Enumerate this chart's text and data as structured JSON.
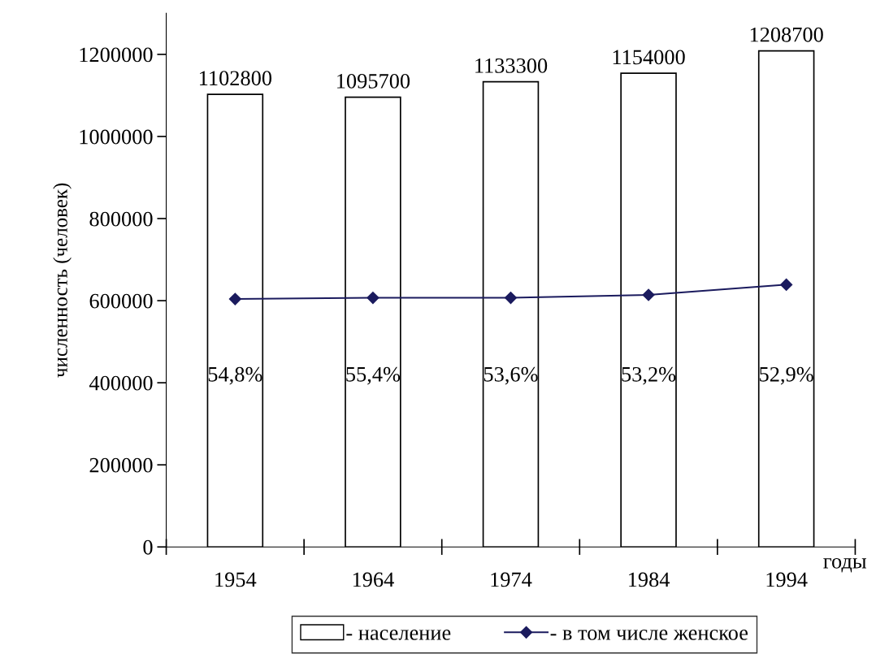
{
  "chart_data": {
    "type": "bar",
    "categories": [
      "1954",
      "1964",
      "1974",
      "1984",
      "1994"
    ],
    "ylabel": "численность (человек)",
    "xlabel": "годы",
    "ylim": [
      0,
      1300000
    ],
    "yticks": [
      0,
      200000,
      400000,
      600000,
      800000,
      1000000,
      1200000
    ],
    "grid": false,
    "legend": "bottom",
    "series": [
      {
        "name": "- население",
        "color": "#ffffff",
        "values": [
          1102800,
          1095700,
          1133300,
          1154000,
          1208700
        ],
        "value_labels": [
          "1102800",
          "1095700",
          "1133300",
          "1154000",
          "1208700"
        ]
      },
      {
        "name": "- в том числе женское",
        "type": "line",
        "color": "#1b1b5e",
        "marker": "diamond",
        "line_style": "solid",
        "values": [
          604000,
          607000,
          607000,
          614000,
          639000
        ]
      }
    ],
    "annotations": [
      "54,8%",
      "55,4%",
      "53,6%",
      "53,2%",
      "52,9%"
    ]
  }
}
